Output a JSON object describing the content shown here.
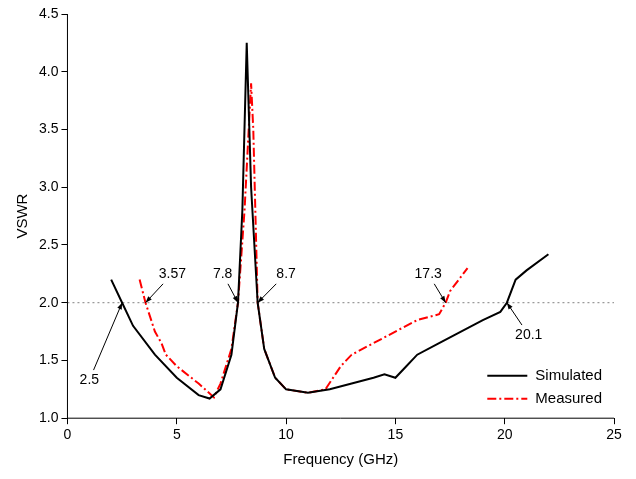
{
  "chart_data": {
    "type": "line",
    "x_label": "Frequency (GHz)",
    "y_label": "VSWR",
    "xlim": [
      0,
      25
    ],
    "xticks": [
      0,
      5,
      10,
      15,
      20,
      25
    ],
    "ylim": [
      1,
      4.5
    ],
    "yticks": [
      {
        "value": 1,
        "label": "1.0"
      },
      {
        "value": 1.5,
        "label": "1.5"
      },
      {
        "value": 2,
        "label": "2.0"
      },
      {
        "value": 2.5,
        "label": "2.5"
      },
      {
        "value": 3,
        "label": "3.0"
      },
      {
        "value": 3.5,
        "label": "3.5"
      },
      {
        "value": 4,
        "label": "4.0"
      },
      {
        "value": 4.5,
        "label": "4.5"
      }
    ],
    "grid": false,
    "legend": "lower right",
    "reference_lines": [
      {
        "y": 2,
        "color": "#808080",
        "line_style": "dotted"
      }
    ],
    "annotations": [
      {
        "text": "2.5",
        "x": 2.5,
        "y": 2,
        "text_x": 1.0,
        "text_y": 1.33
      },
      {
        "text": "3.57",
        "x": 3.57,
        "y": 2,
        "text_x": 4.8,
        "text_y": 2.25
      },
      {
        "text": "7.8",
        "x": 7.8,
        "y": 2,
        "text_x": 7.1,
        "text_y": 2.25
      },
      {
        "text": "8.7",
        "x": 8.7,
        "y": 2,
        "text_x": 10.0,
        "text_y": 2.25
      },
      {
        "text": "17.3",
        "x": 17.3,
        "y": 2,
        "text_x": 16.5,
        "text_y": 2.25
      },
      {
        "text": "20.1",
        "x": 20.1,
        "y": 2,
        "text_x": 21.1,
        "text_y": 1.72
      }
    ],
    "series": [
      {
        "name": "Simulated",
        "color": "#000000",
        "line_style": "solid",
        "x": [
          2.0,
          2.5,
          3,
          4,
          5,
          6,
          6.5,
          7,
          7.5,
          7.8,
          8.0,
          8.2,
          8.4,
          8.7,
          9,
          9.5,
          10,
          11,
          12,
          13,
          14,
          14.5,
          15,
          15.5,
          16,
          17,
          18,
          19,
          19.8,
          20.1,
          20.5,
          21,
          22
        ],
        "values": [
          2.2,
          2.0,
          1.8,
          1.55,
          1.35,
          1.2,
          1.17,
          1.25,
          1.55,
          2.0,
          2.8,
          4.25,
          3.0,
          2.0,
          1.6,
          1.35,
          1.25,
          1.22,
          1.25,
          1.3,
          1.35,
          1.38,
          1.35,
          1.45,
          1.55,
          1.65,
          1.75,
          1.85,
          1.92,
          2.0,
          2.2,
          2.28,
          2.42
        ]
      },
      {
        "name": "Measured",
        "color": "#ff0000",
        "line_style": "dashdot",
        "x": [
          3.3,
          3.57,
          4,
          4.3,
          4.5,
          5,
          6,
          6.7,
          7.0,
          7.5,
          7.8,
          8.1,
          8.4,
          8.5,
          8.7,
          9,
          9.5,
          10,
          11,
          11.8,
          12.5,
          13,
          14,
          15,
          16,
          17,
          17.3,
          17.5,
          18.3
        ],
        "values": [
          2.2,
          2.0,
          1.75,
          1.65,
          1.55,
          1.45,
          1.3,
          1.18,
          1.3,
          1.6,
          2.0,
          2.8,
          3.9,
          3.5,
          2.0,
          1.6,
          1.35,
          1.25,
          1.22,
          1.25,
          1.45,
          1.55,
          1.65,
          1.75,
          1.85,
          1.9,
          2.0,
          2.1,
          2.3
        ]
      }
    ]
  }
}
